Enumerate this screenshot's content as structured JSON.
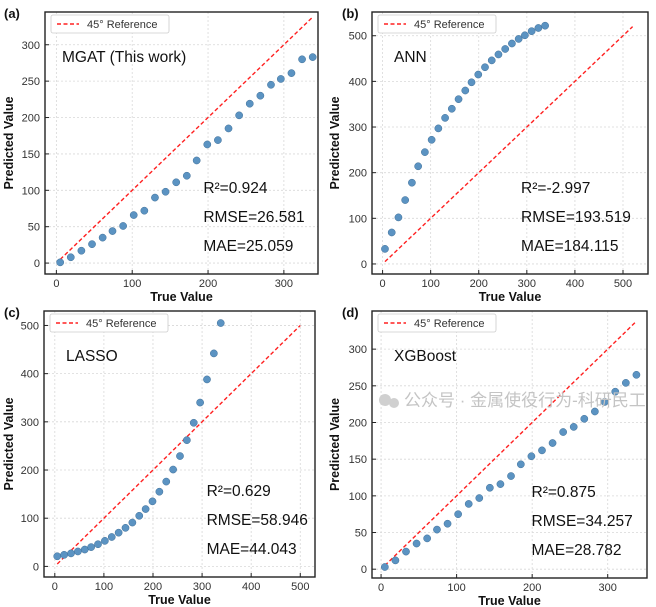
{
  "chart_data": [
    {
      "type": "scatter",
      "panel": "(a)",
      "model": "MGAT (This work)",
      "xlabel": "True Value",
      "ylabel": "Predicted Value",
      "legend": "45° Reference",
      "legend_placement": "top-left",
      "grid": true,
      "xlim": [
        -15,
        345
      ],
      "ylim": [
        -15,
        345
      ],
      "xticks": [
        0,
        100,
        200,
        300
      ],
      "yticks": [
        0,
        50,
        100,
        150,
        200,
        250,
        300
      ],
      "reference_line": [
        5,
        338
      ],
      "x": [
        5,
        19,
        33,
        47,
        61,
        74,
        88,
        102,
        116,
        130,
        144,
        158,
        172,
        185,
        199,
        213,
        227,
        241,
        255,
        269,
        283,
        296,
        310,
        324,
        338
      ],
      "y": [
        1,
        8,
        17,
        26,
        35,
        44,
        51,
        66,
        72,
        90,
        98,
        111,
        120,
        141,
        163,
        169,
        185,
        203,
        219,
        230,
        245,
        253,
        261,
        280,
        283
      ],
      "metrics": [
        "R²=0.924",
        "RMSE=26.581",
        "MAE=25.059"
      ],
      "point_color": "#5b93c2",
      "line_color": "#ff2020"
    },
    {
      "type": "scatter",
      "panel": "(b)",
      "model": "ANN",
      "xlabel": "True Value",
      "ylabel": "Predicted Value",
      "legend": "45° Reference",
      "legend_placement": "top-left",
      "grid": true,
      "xlim": [
        -22,
        552
      ],
      "ylim": [
        -22,
        552
      ],
      "xticks": [
        0,
        100,
        200,
        300,
        400,
        500
      ],
      "yticks": [
        0,
        100,
        200,
        300,
        400,
        500
      ],
      "reference_line": [
        5,
        520
      ],
      "x": [
        5,
        19,
        33,
        47,
        61,
        74,
        88,
        102,
        116,
        130,
        144,
        158,
        172,
        185,
        199,
        213,
        227,
        241,
        255,
        269,
        283,
        296,
        310,
        324,
        338
      ],
      "y": [
        33,
        69,
        102,
        140,
        178,
        214,
        245,
        272,
        297,
        320,
        340,
        361,
        380,
        398,
        415,
        431,
        446,
        459,
        471,
        483,
        493,
        501,
        510,
        517,
        522
      ],
      "metrics": [
        "R²=-2.997",
        "RMSE=193.519",
        "MAE=184.115"
      ],
      "point_color": "#5b93c2",
      "line_color": "#ff2020"
    },
    {
      "type": "scatter",
      "panel": "(c)",
      "model": "LASSO",
      "xlabel": "True Value",
      "ylabel": "Predicted Value",
      "legend": "45° Reference",
      "legend_placement": "top-left",
      "grid": true,
      "xlim": [
        -22,
        530
      ],
      "ylim": [
        -22,
        530
      ],
      "xticks": [
        0,
        100,
        200,
        300,
        400,
        500
      ],
      "yticks": [
        0,
        100,
        200,
        300,
        400,
        500
      ],
      "reference_line": [
        5,
        500
      ],
      "x": [
        5,
        19,
        33,
        47,
        61,
        74,
        88,
        102,
        116,
        130,
        144,
        158,
        172,
        185,
        199,
        213,
        227,
        241,
        255,
        269,
        283,
        296,
        310,
        324,
        338
      ],
      "y": [
        21,
        24,
        27,
        31,
        35,
        40,
        46,
        53,
        61,
        70,
        80,
        91,
        105,
        119,
        135,
        155,
        176,
        201,
        229,
        262,
        298,
        340,
        388,
        442,
        505
      ],
      "metrics": [
        "R²=0.629",
        "RMSE=58.946",
        "MAE=44.043"
      ],
      "point_color": "#5b93c2",
      "line_color": "#ff2020"
    },
    {
      "type": "scatter",
      "panel": "(d)",
      "model": "XGBoost",
      "xlabel": "True Value",
      "ylabel": "Predicted Value",
      "legend": "45° Reference",
      "legend_placement": "top-left",
      "grid": true,
      "xlim": [
        -12,
        352
      ],
      "ylim": [
        -12,
        352
      ],
      "xticks": [
        0,
        100,
        200,
        300
      ],
      "yticks": [
        0,
        50,
        100,
        150,
        200,
        250,
        300
      ],
      "reference_line": [
        5,
        338
      ],
      "x": [
        5,
        19,
        33,
        47,
        61,
        74,
        88,
        102,
        116,
        130,
        144,
        158,
        172,
        185,
        199,
        213,
        227,
        241,
        255,
        269,
        283,
        296,
        310,
        324,
        338
      ],
      "y": [
        3,
        12,
        24,
        35,
        42,
        54,
        62,
        75,
        89,
        97,
        111,
        116,
        127,
        143,
        154,
        162,
        172,
        187,
        194,
        205,
        215,
        228,
        242,
        254,
        265
      ],
      "metrics": [
        "R²=0.875",
        "RMSE=34.257",
        "MAE=28.782"
      ],
      "point_color": "#5b93c2",
      "line_color": "#ff2020"
    }
  ],
  "watermark": "公众号 · 金属使役行为-科研民工"
}
